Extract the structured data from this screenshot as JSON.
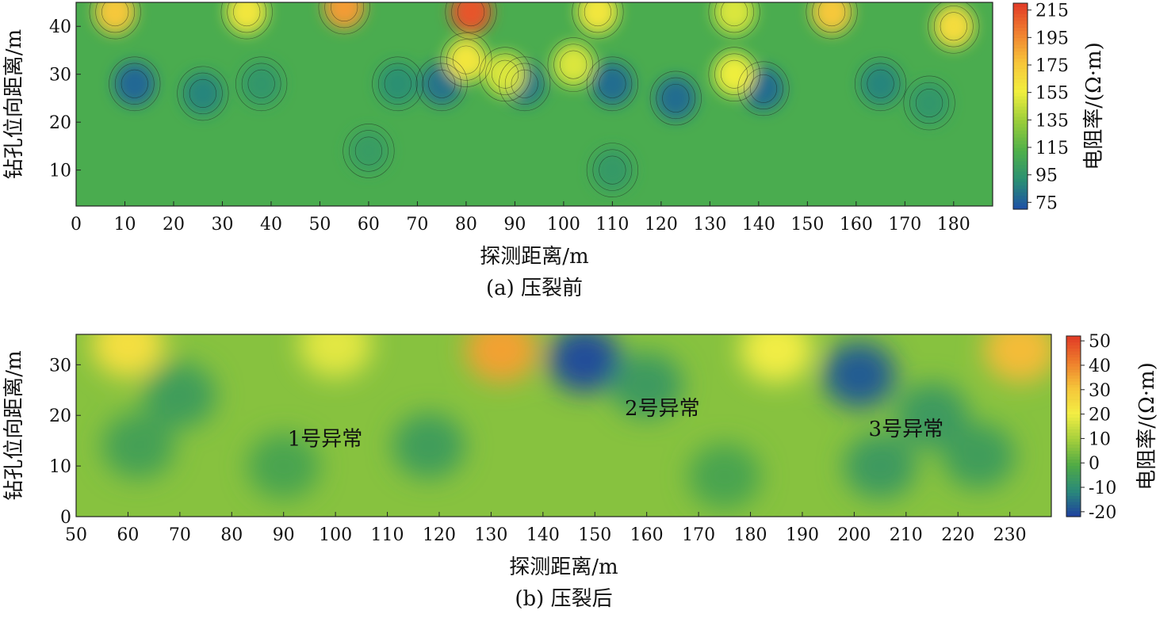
{
  "chart_data": [
    {
      "type": "heatmap",
      "caption": "(a) 压裂前",
      "xlabel": "探测距离/m",
      "ylabel": "钻孔位向距离/m",
      "xlim": [
        0,
        188
      ],
      "ylim": [
        2.5,
        45
      ],
      "xticks": [
        0,
        10,
        20,
        30,
        40,
        50,
        60,
        70,
        80,
        90,
        100,
        110,
        120,
        130,
        140,
        150,
        160,
        170,
        180
      ],
      "yticks": [
        10,
        20,
        30,
        40
      ],
      "colorbar": {
        "label": "电阻率/(Ω·m)",
        "range": [
          70,
          220
        ],
        "ticks": [
          75,
          95,
          115,
          135,
          155,
          175,
          195,
          215
        ],
        "colors": [
          "#1e4fa8",
          "#2a8f73",
          "#4fb04a",
          "#9acd3a",
          "#f1ef3e",
          "#f7c43a",
          "#f08030",
          "#e23a26"
        ]
      },
      "background_value": 110,
      "contours": true,
      "features": [
        {
          "x": 12,
          "y": 28,
          "value": 78
        },
        {
          "x": 26,
          "y": 26,
          "value": 88
        },
        {
          "x": 38,
          "y": 28,
          "value": 96
        },
        {
          "x": 66,
          "y": 28,
          "value": 92
        },
        {
          "x": 75,
          "y": 28,
          "value": 82
        },
        {
          "x": 92,
          "y": 28,
          "value": 84
        },
        {
          "x": 110,
          "y": 28,
          "value": 80
        },
        {
          "x": 123,
          "y": 25,
          "value": 80
        },
        {
          "x": 141,
          "y": 27,
          "value": 80
        },
        {
          "x": 165,
          "y": 28,
          "value": 88
        },
        {
          "x": 175,
          "y": 24,
          "value": 96
        },
        {
          "x": 8,
          "y": 43,
          "value": 175
        },
        {
          "x": 35,
          "y": 43,
          "value": 160
        },
        {
          "x": 55,
          "y": 44,
          "value": 190
        },
        {
          "x": 81,
          "y": 43,
          "value": 212
        },
        {
          "x": 80,
          "y": 33,
          "value": 160
        },
        {
          "x": 107,
          "y": 43,
          "value": 160
        },
        {
          "x": 135,
          "y": 43,
          "value": 150
        },
        {
          "x": 155,
          "y": 43,
          "value": 175
        },
        {
          "x": 180,
          "y": 40,
          "value": 165
        },
        {
          "x": 88,
          "y": 30,
          "value": 150
        },
        {
          "x": 102,
          "y": 32,
          "value": 150
        },
        {
          "x": 135,
          "y": 30,
          "value": 155
        },
        {
          "x": 60,
          "y": 14,
          "value": 100
        },
        {
          "x": 110,
          "y": 10,
          "value": 98
        }
      ]
    },
    {
      "type": "heatmap",
      "caption": "(b) 压裂后",
      "xlabel": "探测距离/m",
      "ylabel": "钻孔位向距离/m",
      "xlim": [
        50,
        238
      ],
      "ylim": [
        0,
        36
      ],
      "xticks": [
        50,
        60,
        70,
        80,
        90,
        100,
        110,
        120,
        130,
        140,
        150,
        160,
        170,
        180,
        190,
        200,
        210,
        220,
        230
      ],
      "yticks": [
        0,
        10,
        20,
        30
      ],
      "colorbar": {
        "label": "电阻率/(Ω·m)",
        "range": [
          -22,
          52
        ],
        "ticks": [
          -20,
          -10,
          0,
          10,
          20,
          30,
          40,
          50
        ],
        "colors": [
          "#1e3fa0",
          "#2a8a7a",
          "#4faa45",
          "#a5cf3c",
          "#f3ee44",
          "#f5c43a",
          "#ee7d2c",
          "#e13a26"
        ]
      },
      "background_value": 6,
      "annotations": [
        {
          "text": "1号异常",
          "x": 98,
          "y": 14
        },
        {
          "text": "2号异常",
          "x": 163,
          "y": 20
        },
        {
          "text": "3号异常",
          "x": 210,
          "y": 16
        }
      ],
      "features": [
        {
          "x": 148,
          "y": 31,
          "value": -20
        },
        {
          "x": 201,
          "y": 28,
          "value": -18
        },
        {
          "x": 132,
          "y": 33,
          "value": 36
        },
        {
          "x": 232,
          "y": 33,
          "value": 32
        },
        {
          "x": 60,
          "y": 34,
          "value": 24
        },
        {
          "x": 100,
          "y": 34,
          "value": 18
        },
        {
          "x": 185,
          "y": 33,
          "value": 20
        },
        {
          "x": 70,
          "y": 24,
          "value": -5
        },
        {
          "x": 62,
          "y": 14,
          "value": -4
        },
        {
          "x": 90,
          "y": 10,
          "value": -3
        },
        {
          "x": 118,
          "y": 14,
          "value": -5
        },
        {
          "x": 160,
          "y": 26,
          "value": -6
        },
        {
          "x": 175,
          "y": 8,
          "value": -3
        },
        {
          "x": 205,
          "y": 10,
          "value": -6
        },
        {
          "x": 224,
          "y": 12,
          "value": -5
        },
        {
          "x": 215,
          "y": 20,
          "value": -6
        }
      ]
    }
  ]
}
